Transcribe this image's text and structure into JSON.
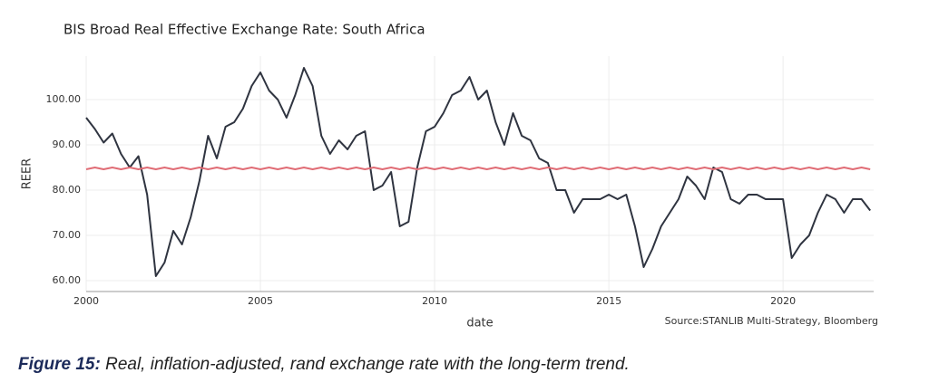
{
  "chart_data": {
    "type": "line",
    "title": "BIS Broad Real Effective Exchange Rate: South Africa",
    "xlabel": "date",
    "ylabel": "REER",
    "source": "Source:STANLIB Multi-Strategy, Bloomberg",
    "x": [
      2000,
      2000.25,
      2000.5,
      2000.75,
      2001,
      2001.25,
      2001.5,
      2001.75,
      2002,
      2002.25,
      2002.5,
      2002.75,
      2003,
      2003.25,
      2003.5,
      2003.75,
      2004,
      2004.25,
      2004.5,
      2004.75,
      2005,
      2005.25,
      2005.5,
      2005.75,
      2006,
      2006.25,
      2006.5,
      2006.75,
      2007,
      2007.25,
      2007.5,
      2007.75,
      2008,
      2008.25,
      2008.5,
      2008.75,
      2009,
      2009.25,
      2009.5,
      2009.75,
      2010,
      2010.25,
      2010.5,
      2010.75,
      2011,
      2011.25,
      2011.5,
      2011.75,
      2012,
      2012.25,
      2012.5,
      2012.75,
      2013,
      2013.25,
      2013.5,
      2013.75,
      2014,
      2014.25,
      2014.5,
      2014.75,
      2015,
      2015.25,
      2015.5,
      2015.75,
      2016,
      2016.25,
      2016.5,
      2016.75,
      2017,
      2017.25,
      2017.5,
      2017.75,
      2018,
      2018.25,
      2018.5,
      2018.75,
      2019,
      2019.25,
      2019.5,
      2019.75,
      2020,
      2020.25,
      2020.5,
      2020.75,
      2021,
      2021.25,
      2021.5,
      2021.75,
      2022,
      2022.25,
      2022.5
    ],
    "series": [
      {
        "color": "#2f3440",
        "values": [
          96,
          93.5,
          90.5,
          92.5,
          88,
          85,
          87.5,
          79,
          61,
          64,
          71,
          68,
          74,
          82,
          92,
          87,
          94,
          95,
          98,
          103,
          106,
          102,
          100,
          96,
          101,
          107,
          103,
          92,
          88,
          91,
          89,
          92,
          93,
          80,
          81,
          84,
          72,
          73,
          85,
          93,
          94,
          97,
          101,
          102,
          105,
          100,
          102,
          95,
          90,
          97,
          92,
          91,
          87,
          86,
          80,
          80,
          75,
          78,
          78,
          78,
          79,
          78,
          79,
          72,
          63,
          67,
          72,
          75,
          78,
          83,
          81,
          78,
          85,
          84,
          78,
          77,
          79,
          79,
          78,
          78,
          78,
          65,
          68,
          70,
          75,
          79,
          78,
          75,
          78,
          78,
          75.5
        ]
      },
      {
        "color": "#e06c75",
        "values": [
          84.6,
          85,
          84.6,
          85,
          84.6,
          85,
          84.6,
          85,
          84.6,
          85,
          84.6,
          85,
          84.6,
          85,
          84.6,
          85,
          84.6,
          85,
          84.6,
          85,
          84.6,
          85,
          84.6,
          85,
          84.6,
          85,
          84.6,
          85,
          84.6,
          85,
          84.6,
          85,
          84.6,
          85,
          84.6,
          85,
          84.6,
          85,
          84.6,
          85,
          84.6,
          85,
          84.6,
          85,
          84.6,
          85,
          84.6,
          85,
          84.6,
          85,
          84.6,
          85,
          84.6,
          85,
          84.6,
          85,
          84.6,
          85,
          84.6,
          85,
          84.6,
          85,
          84.6,
          85,
          84.6,
          85,
          84.6,
          85,
          84.6,
          85,
          84.6,
          85,
          84.6,
          85,
          84.6,
          85,
          84.6,
          85,
          84.6,
          85,
          84.6,
          85,
          84.6,
          85,
          84.6,
          85,
          84.6,
          85,
          84.6,
          85,
          84.6
        ]
      }
    ],
    "xlim": [
      2000,
      2022.6
    ],
    "xticks": [
      2000,
      2005,
      2010,
      2015,
      2020
    ],
    "ylim": [
      57.6,
      109.6
    ],
    "yticks": [
      {
        "value": 60,
        "label": "60.00"
      },
      {
        "value": 70,
        "label": "70.00"
      },
      {
        "value": 80,
        "label": "80.00"
      },
      {
        "value": 90,
        "label": "90.00"
      },
      {
        "value": 100,
        "label": "100.00"
      }
    ],
    "grid": true
  },
  "caption": {
    "label": "Figure 15:",
    "text": " Real, inflation-adjusted, rand exchange rate with the long-term trend."
  }
}
